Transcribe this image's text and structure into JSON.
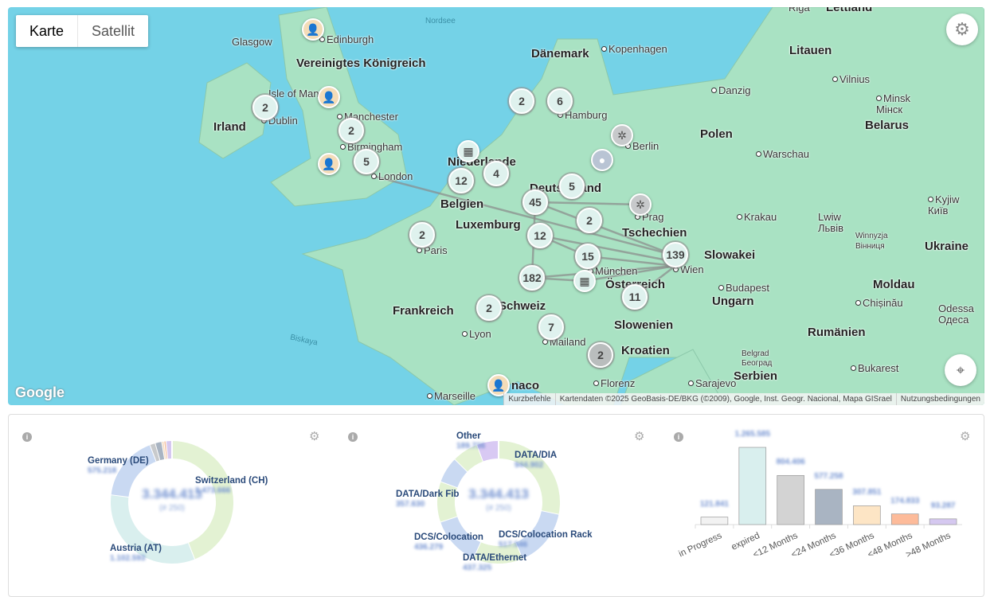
{
  "map": {
    "type_buttons": [
      "Karte",
      "Satellit"
    ],
    "google_logo": "Google",
    "attribution": [
      "Kurzbefehle",
      "Kartendaten ©2025 GeoBasis-DE/BKG (©2009), Google, Inst. Geogr. Nacional, Mapa GISrael",
      "Nutzungsbedingungen"
    ],
    "settings_icon": "gear-icon",
    "recenter_icon": "crosshair-icon",
    "countries": [
      "Vereinigtes Königreich",
      "Irland",
      "Dänemark",
      "Niederlande",
      "Belgien",
      "Luxemburg",
      "Deutschland",
      "Polen",
      "Tschechien",
      "Slowakei",
      "Österreich",
      "Schweiz",
      "Frankreich",
      "Ungarn",
      "Slowenien",
      "Kroatien",
      "Litauen",
      "Belarus",
      "Ukraine",
      "Moldau",
      "Rumänien",
      "Serbien",
      "Lettland"
    ],
    "cities": [
      "Glasgow",
      "Edinburgh",
      "Isle of Man",
      "Dublin",
      "Manchester",
      "Birmingham",
      "London",
      "Kopenhagen",
      "Hamburg",
      "Berlin",
      "Danzig",
      "Warschau",
      "Vilnius",
      "Minsk Мінск",
      "Paris",
      "Prag",
      "Krakau",
      "Lwiw Львів",
      "Winnyzja Вінниця",
      "Kyjiw Київ",
      "Wien",
      "München",
      "Budapest",
      "Chișinău",
      "Odessa Одеса",
      "Lyon",
      "Mailand",
      "Belgrad Београд",
      "Bukarest",
      "Sarajevo",
      "Florenz",
      "Marseille",
      "naco",
      "Riga"
    ],
    "seas": [
      "Nordsee",
      "Biskaya"
    ],
    "clusters": [
      "2",
      "2",
      "5",
      "2",
      "6",
      "12",
      "4",
      "5",
      "45",
      "2",
      "12",
      "2",
      "15",
      "139",
      "182",
      "11",
      "2",
      "7",
      "2"
    ]
  },
  "panels": {
    "info_icon": "info-icon",
    "settings_icon": "gear-icon"
  },
  "chart_data": [
    {
      "type": "pie",
      "donut": true,
      "center_value": "3.344.413",
      "center_sub": "(# 250)",
      "labels": [
        "Switzerland (CH)",
        "Austria (AT)",
        "Germany (DE)"
      ],
      "value_labels": [
        "1.473.666",
        "1.102.593",
        "575.218"
      ],
      "values": [
        1473666,
        1102593,
        575218
      ],
      "colors": [
        "#e3f2d3",
        "#d9efee",
        "#c9d9f2"
      ],
      "other_colors": [
        "#c8cacc",
        "#a9b4c2",
        "#f6dcc0",
        "#f5c4a8",
        "#d5c8f0"
      ]
    },
    {
      "type": "pie",
      "donut": true,
      "center_value": "3.344.413",
      "center_sub": "(# 250)",
      "labels": [
        "DATA/DIA",
        "DCS/Colocation Rack",
        "DATA/Ethernet",
        "DCS/Colocation",
        "DATA/Dark Fib",
        "Other"
      ],
      "value_labels": [
        "944.902",
        "517.546",
        "437.325",
        "436.279",
        "357.630",
        "189.736"
      ],
      "values": [
        944902,
        517546,
        437325,
        436279,
        357630,
        189736
      ],
      "colors": [
        "#e3f2d3",
        "#c9d9f2",
        "#e3f2d3",
        "#c9d9f2",
        "#e3f2d3",
        "#d8c9f3"
      ],
      "other_colors": [
        "#c9d9f2",
        "#e3f2d3"
      ]
    },
    {
      "type": "bar",
      "categories": [
        "in Progress",
        "expired",
        "<12 Months",
        "<24 Months",
        "<36 Months",
        "<48 Months",
        ">48 Months"
      ],
      "values": [
        121841,
        1265585,
        804406,
        577258,
        307851,
        174833,
        93287
      ],
      "value_labels": [
        "121.841",
        "1.265.585",
        "804.406",
        "577.258",
        "307.851",
        "174.833",
        "93.287"
      ],
      "colors": [
        "#f2f2f2",
        "#d9efee",
        "#d3d3d3",
        "#a9b4c2",
        "#fde5c5",
        "#fdbb9a",
        "#d5c8f0"
      ]
    }
  ]
}
